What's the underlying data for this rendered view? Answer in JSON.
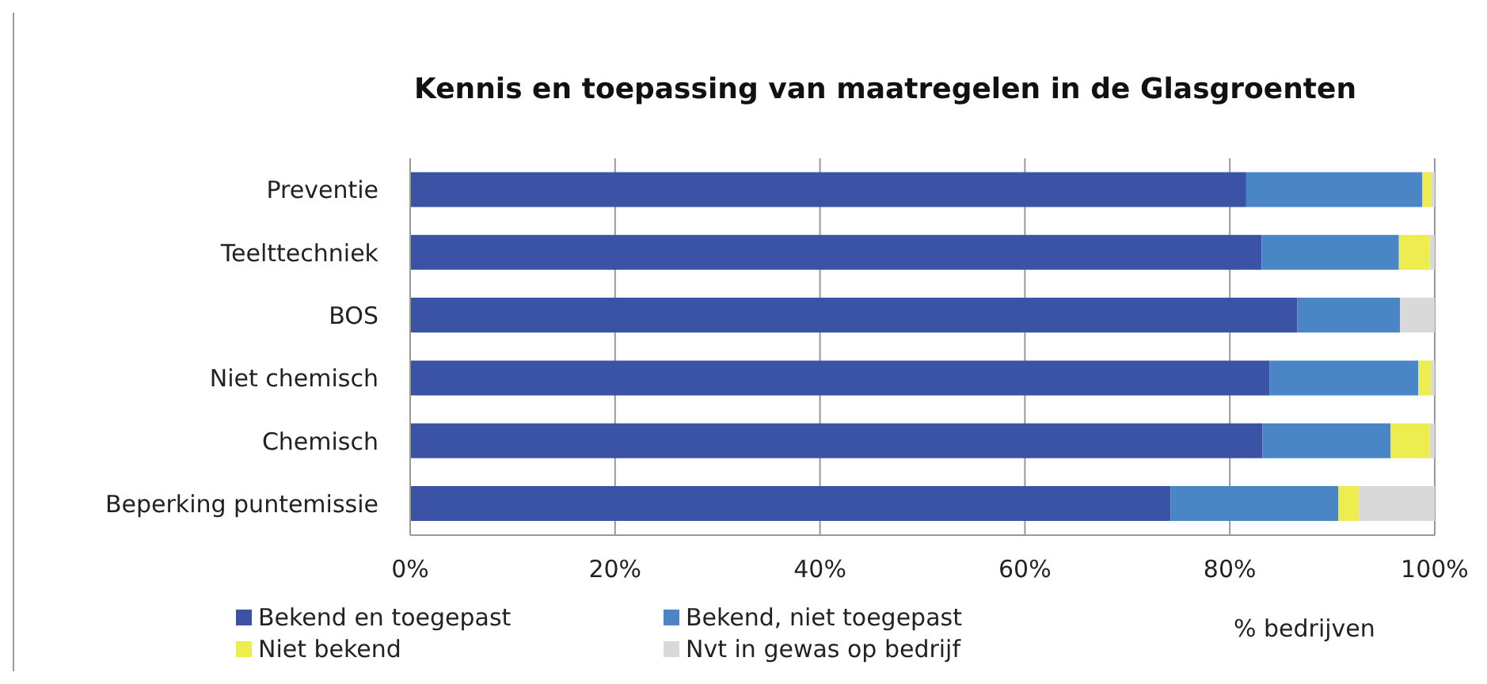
{
  "chart_data": {
    "type": "bar",
    "orientation": "horizontal",
    "stacked": true,
    "title": "Kennis en toepassing van maatregelen in de Glasgroenten",
    "xlabel": "% bedrijven",
    "categories": [
      "Preventie",
      "Teelttechniek",
      "BOS",
      "Niet chemisch",
      "Chemisch",
      "Beperking puntemissie"
    ],
    "series": [
      {
        "name": "Bekend en toegepast",
        "color": "#3a53a4",
        "values": [
          81.6,
          83.1,
          86.6,
          83.9,
          83.2,
          74.2
        ]
      },
      {
        "name": "Bekend, niet toegepast",
        "color": "#4a86c6",
        "values": [
          17.2,
          13.4,
          10.0,
          14.5,
          12.5,
          16.4
        ]
      },
      {
        "name": "Niet bekend",
        "color": "#eded50",
        "values": [
          0.9,
          3.0,
          0,
          1.2,
          3.8,
          2.0
        ]
      },
      {
        "name": "Nvt in gewas op bedrijf",
        "color": "#d9d9d9",
        "values": [
          0.3,
          0.5,
          3.4,
          0.4,
          0.5,
          7.4
        ]
      }
    ],
    "xlim": [
      0,
      100
    ],
    "xticks": [
      {
        "value": 0,
        "label": "0%"
      },
      {
        "value": 20,
        "label": "20%"
      },
      {
        "value": 40,
        "label": "40%"
      },
      {
        "value": 60,
        "label": "60%"
      },
      {
        "value": 80,
        "label": "80%"
      },
      {
        "value": 100,
        "label": "100%"
      }
    ],
    "grid": "x",
    "legend": "bottom"
  }
}
